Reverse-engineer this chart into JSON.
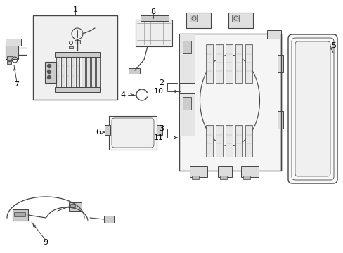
{
  "background_color": "#ffffff",
  "line_color": "#444444",
  "text_color": "#000000",
  "figsize": [
    4.89,
    3.6
  ],
  "dpi": 100,
  "font_size": 8,
  "label_box_color": "#ffffff",
  "gray_fill": "#e8e8e8",
  "light_gray": "#f0f0f0",
  "med_gray": "#cccccc",
  "dark_gray": "#888888"
}
